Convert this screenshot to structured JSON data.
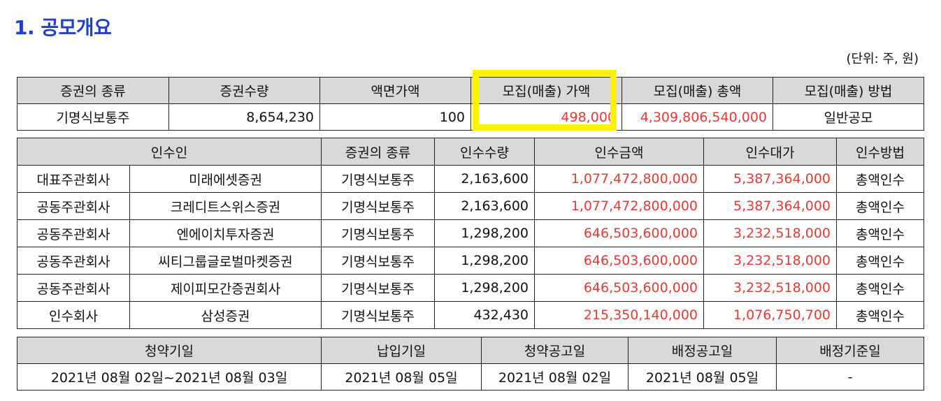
{
  "title": "1. 공모개요",
  "unit": "(단위: 주, 원)",
  "offering": {
    "headers": [
      "증권의 종류",
      "증권수량",
      "액면가액",
      "모집(매출) 가액",
      "모집(매출) 총액",
      "모집(매출) 방법"
    ],
    "row": {
      "type": "기명식보통주",
      "quantity": "8,654,230",
      "par_value": "100",
      "offer_price": "498,000",
      "total": "4,309,806,540,000",
      "method": "일반공모"
    }
  },
  "underwriters": {
    "headers": [
      "인수인",
      "증권의 종류",
      "인수수량",
      "인수금액",
      "인수대가",
      "인수방법"
    ],
    "rows": [
      {
        "role": "대표주관회사",
        "name": "미래에셋증권",
        "type": "기명식보통주",
        "qty": "2,163,600",
        "amount": "1,077,472,800,000",
        "fee": "5,387,364,000",
        "method": "총액인수"
      },
      {
        "role": "공동주관회사",
        "name": "크레디트스위스증권",
        "type": "기명식보통주",
        "qty": "2,163,600",
        "amount": "1,077,472,800,000",
        "fee": "5,387,364,000",
        "method": "총액인수"
      },
      {
        "role": "공동주관회사",
        "name": "엔에이치투자증권",
        "type": "기명식보통주",
        "qty": "1,298,200",
        "amount": "646,503,600,000",
        "fee": "3,232,518,000",
        "method": "총액인수"
      },
      {
        "role": "공동주관회사",
        "name": "씨티그룹글로벌마켓증권",
        "type": "기명식보통주",
        "qty": "1,298,200",
        "amount": "646,503,600,000",
        "fee": "3,232,518,000",
        "method": "총액인수"
      },
      {
        "role": "공동주관회사",
        "name": "제이피모간증권회사",
        "type": "기명식보통주",
        "qty": "1,298,200",
        "amount": "646,503,600,000",
        "fee": "3,232,518,000",
        "method": "총액인수"
      },
      {
        "role": "인수회사",
        "name": "삼성증권",
        "type": "기명식보통주",
        "qty": "432,430",
        "amount": "215,350,140,000",
        "fee": "1,076,750,700",
        "method": "총액인수"
      }
    ]
  },
  "schedule": {
    "headers": [
      "청약기일",
      "납입기일",
      "청약공고일",
      "배정공고일",
      "배정기준일"
    ],
    "row": [
      "2021년 08월 02일~2021년 08월 03일",
      "2021년 08월 05일",
      "2021년 08월 02일",
      "2021년 08월 05일",
      "-"
    ]
  },
  "colors": {
    "title": "#1f3fd0",
    "highlight_values": "#e53935",
    "header_bg": "#d9d9d9",
    "highlight_box": "#fff200"
  }
}
